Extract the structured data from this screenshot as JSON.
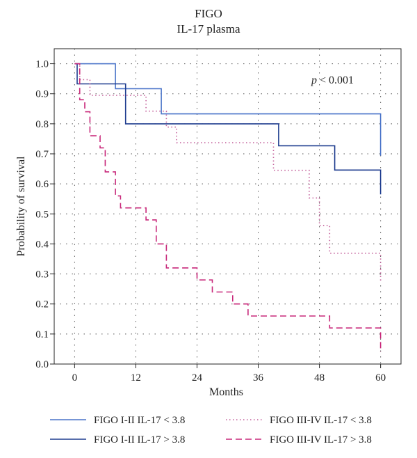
{
  "chart_data": {
    "type": "line",
    "title": "FIGO",
    "subtitle": "IL-17 plasma",
    "xlabel": "Months",
    "ylabel": "Probability of survival",
    "xlim": [
      -4,
      64
    ],
    "ylim": [
      0,
      1.05
    ],
    "xticks": [
      0,
      12,
      24,
      36,
      48,
      60
    ],
    "yticks": [
      0.0,
      0.1,
      0.2,
      0.3,
      0.4,
      0.5,
      0.6,
      0.7,
      0.8,
      0.9,
      1.0
    ],
    "grid": true,
    "annotation": {
      "italic": "p",
      "rest": " < 0.001"
    },
    "series": [
      {
        "name": "FIGO I-II IL-17 < 3.8",
        "color": "#4a74c9",
        "dash": "solid",
        "points": [
          [
            0,
            1.0
          ],
          [
            8,
            1.0
          ],
          [
            8,
            0.917
          ],
          [
            17,
            0.917
          ],
          [
            17,
            0.833
          ],
          [
            60,
            0.833
          ],
          [
            60,
            0.694
          ]
        ]
      },
      {
        "name": "FIGO I-II IL-17 > 3.8",
        "color": "#1f3d8f",
        "dash": "solid",
        "points": [
          [
            0,
            1.0
          ],
          [
            0.5,
            1.0
          ],
          [
            0.5,
            0.933
          ],
          [
            10,
            0.933
          ],
          [
            10,
            0.8
          ],
          [
            40,
            0.8
          ],
          [
            40,
            0.727
          ],
          [
            51,
            0.727
          ],
          [
            51,
            0.646
          ],
          [
            60,
            0.646
          ],
          [
            60,
            0.565
          ]
        ]
      },
      {
        "name": "FIGO III-IV IL-17 < 3.8",
        "color": "#c4609b",
        "dash": "dotted",
        "points": [
          [
            0,
            1.0
          ],
          [
            1,
            1.0
          ],
          [
            1,
            0.947
          ],
          [
            3,
            0.947
          ],
          [
            3,
            0.895
          ],
          [
            14,
            0.895
          ],
          [
            14,
            0.842
          ],
          [
            18,
            0.842
          ],
          [
            18,
            0.789
          ],
          [
            20,
            0.789
          ],
          [
            20,
            0.737
          ],
          [
            39,
            0.737
          ],
          [
            39,
            0.645
          ],
          [
            46,
            0.645
          ],
          [
            46,
            0.553
          ],
          [
            48,
            0.553
          ],
          [
            48,
            0.461
          ],
          [
            50,
            0.461
          ],
          [
            50,
            0.369
          ],
          [
            60,
            0.369
          ],
          [
            60,
            0.277
          ]
        ]
      },
      {
        "name": "FIGO III-IV IL-17 > 3.8",
        "color": "#c8287a",
        "dash": "dashed",
        "points": [
          [
            0,
            1.0
          ],
          [
            1,
            1.0
          ],
          [
            1,
            0.88
          ],
          [
            2,
            0.88
          ],
          [
            2,
            0.84
          ],
          [
            3,
            0.84
          ],
          [
            3,
            0.76
          ],
          [
            5,
            0.76
          ],
          [
            5,
            0.72
          ],
          [
            6,
            0.72
          ],
          [
            6,
            0.64
          ],
          [
            8,
            0.64
          ],
          [
            8,
            0.56
          ],
          [
            9,
            0.56
          ],
          [
            9,
            0.52
          ],
          [
            14,
            0.52
          ],
          [
            14,
            0.48
          ],
          [
            16,
            0.48
          ],
          [
            16,
            0.4
          ],
          [
            18,
            0.4
          ],
          [
            18,
            0.32
          ],
          [
            24,
            0.32
          ],
          [
            24,
            0.28
          ],
          [
            27,
            0.28
          ],
          [
            27,
            0.24
          ],
          [
            31,
            0.24
          ],
          [
            31,
            0.2
          ],
          [
            34,
            0.2
          ],
          [
            34,
            0.16
          ],
          [
            50,
            0.16
          ],
          [
            50,
            0.12
          ],
          [
            60,
            0.12
          ],
          [
            60,
            0.04
          ]
        ]
      }
    ]
  }
}
